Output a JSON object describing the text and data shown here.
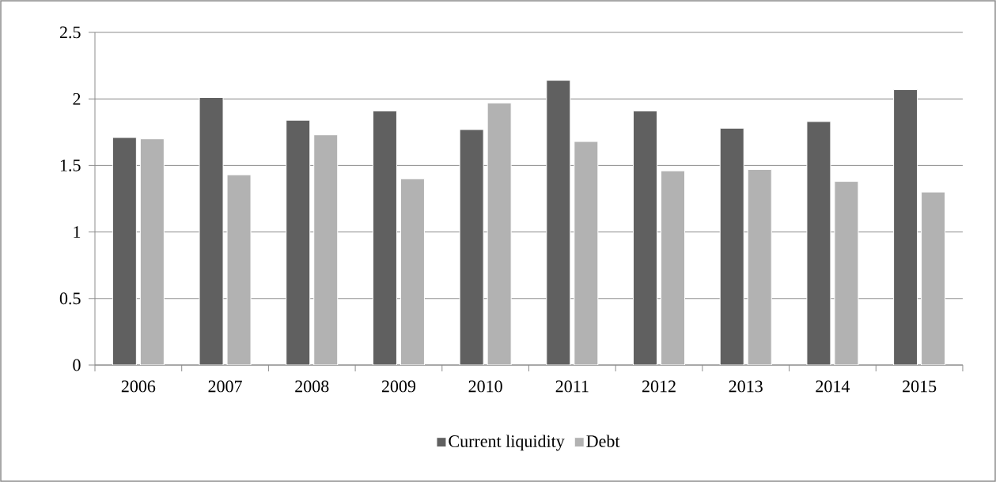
{
  "chart_data": {
    "type": "bar",
    "categories": [
      "2006",
      "2007",
      "2008",
      "2009",
      "2010",
      "2011",
      "2012",
      "2013",
      "2014",
      "2015"
    ],
    "series": [
      {
        "name": "Current liquidity",
        "color": "#606060",
        "values": [
          1.71,
          2.01,
          1.84,
          1.91,
          1.77,
          2.14,
          1.91,
          1.78,
          1.83,
          2.07
        ]
      },
      {
        "name": "Debt",
        "color": "#b2b2b2",
        "values": [
          1.7,
          1.43,
          1.73,
          1.4,
          1.97,
          1.68,
          1.46,
          1.47,
          1.38,
          1.3
        ]
      }
    ],
    "ylim": [
      0,
      2.5
    ],
    "yticks": [
      0,
      0.5,
      1,
      1.5,
      2,
      2.5
    ],
    "grid": "y",
    "legend": "bottom"
  }
}
